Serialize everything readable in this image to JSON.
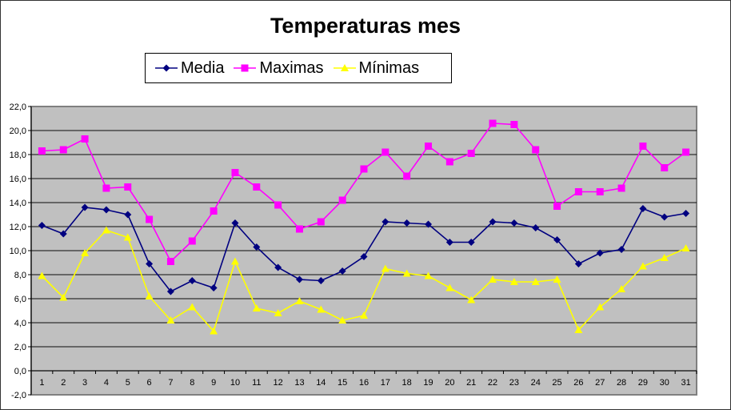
{
  "chart_data": {
    "type": "line",
    "title": "Temperaturas mes",
    "xlabel": "",
    "ylabel": "",
    "ylim": [
      -2,
      22
    ],
    "ytick_step": 2,
    "ytick_labels": [
      "-2,0",
      "0,0",
      "2,0",
      "4,0",
      "6,0",
      "8,0",
      "10,0",
      "12,0",
      "14,0",
      "16,0",
      "18,0",
      "20,0",
      "22,0"
    ],
    "grid": true,
    "legend_position": "top-center",
    "categories": [
      "1",
      "2",
      "3",
      "4",
      "5",
      "6",
      "7",
      "8",
      "9",
      "10",
      "11",
      "12",
      "13",
      "14",
      "15",
      "16",
      "17",
      "18",
      "19",
      "20",
      "21",
      "22",
      "23",
      "24",
      "25",
      "26",
      "27",
      "28",
      "29",
      "30",
      "31"
    ],
    "series": [
      {
        "name": "Media",
        "color": "#000080",
        "marker": "diamond",
        "values": [
          12.1,
          11.4,
          13.6,
          13.4,
          13.0,
          8.9,
          6.6,
          7.5,
          6.9,
          12.3,
          10.3,
          8.6,
          7.6,
          7.5,
          8.3,
          9.5,
          12.4,
          12.3,
          12.2,
          10.7,
          10.7,
          12.4,
          12.3,
          11.9,
          10.9,
          8.9,
          9.8,
          10.1,
          13.5,
          12.8,
          13.1
        ]
      },
      {
        "name": "Maximas",
        "color": "#ff00ff",
        "marker": "square",
        "values": [
          18.3,
          18.4,
          19.3,
          15.2,
          15.3,
          12.6,
          9.1,
          10.8,
          13.3,
          16.5,
          15.3,
          13.8,
          11.8,
          12.4,
          14.2,
          16.8,
          18.2,
          16.2,
          18.7,
          17.4,
          18.1,
          20.6,
          20.5,
          18.4,
          13.7,
          14.9,
          14.9,
          15.2,
          18.7,
          16.9,
          18.2
        ]
      },
      {
        "name": "Mínimas",
        "color": "#ffff00",
        "marker": "triangle",
        "values": [
          7.9,
          6.1,
          9.8,
          11.7,
          11.1,
          6.2,
          4.2,
          5.3,
          3.3,
          9.1,
          5.2,
          4.8,
          5.8,
          5.1,
          4.2,
          4.6,
          8.5,
          8.1,
          7.9,
          6.9,
          5.9,
          7.6,
          7.4,
          7.4,
          7.6,
          3.4,
          5.3,
          6.8,
          8.7,
          9.4,
          10.2
        ]
      }
    ],
    "plot_background": "#c0c0c0"
  }
}
